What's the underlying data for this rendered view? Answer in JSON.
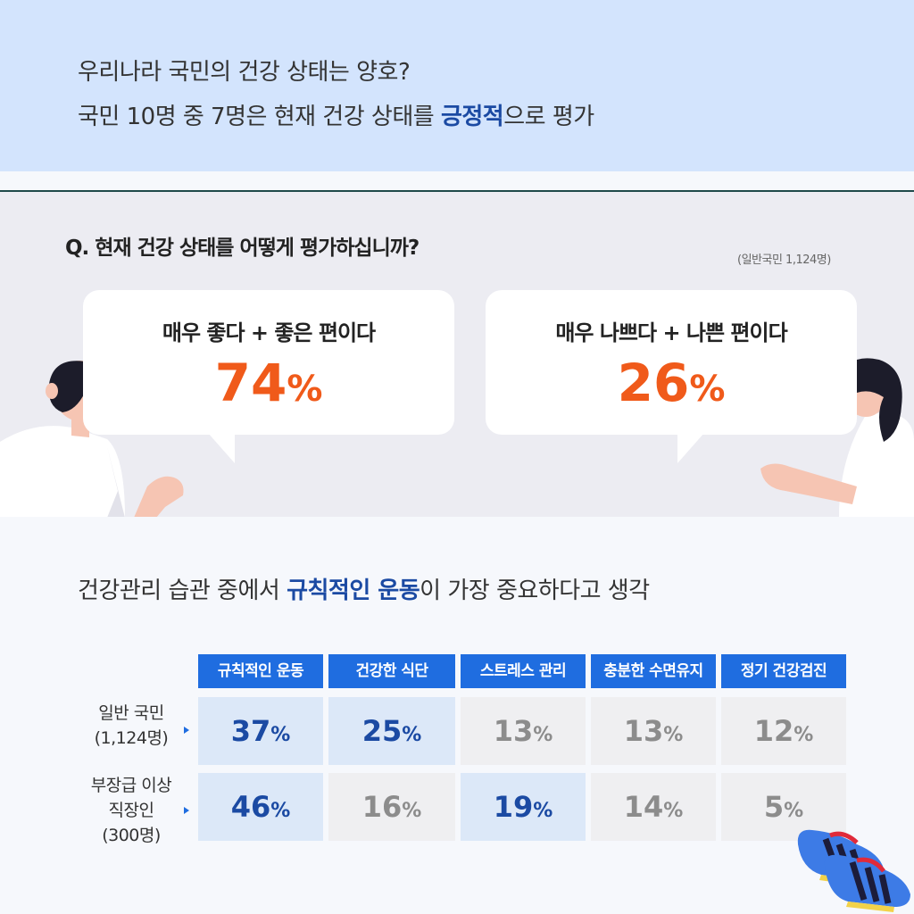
{
  "header": {
    "line1": "우리나라 국민의 건강 상태는 양호?",
    "line2_prefix": "국민 10명 중 7명은 현재 건강 상태를 ",
    "line2_highlight": "긍정적",
    "line2_suffix": "으로 평가"
  },
  "survey": {
    "question": "Q. 현재 건강 상태를 어떻게 평가하십니까?",
    "sample": "(일반국민 1,124명)",
    "positive": {
      "label": "매우 좋다 + 좋은 편이다",
      "value": "74",
      "unit": "%"
    },
    "negative": {
      "label": "매우 나쁘다 + 나쁜 편이다",
      "value": "26",
      "unit": "%"
    }
  },
  "habits": {
    "title_prefix": "건강관리 습관 중에서 ",
    "title_highlight": "규칙적인 운동",
    "title_suffix": "이 가장 중요하다고 생각",
    "columns": [
      "규칙적인 운동",
      "건강한 식단",
      "스트레스 관리",
      "충분한 수면유지",
      "정기 건강검진"
    ],
    "rows": [
      {
        "label_line1": "일반 국민",
        "label_line2": "(1,124명)",
        "label_line3": "",
        "values": [
          "37",
          "25",
          "13",
          "13",
          "12"
        ],
        "highlight": [
          true,
          true,
          false,
          false,
          false
        ]
      },
      {
        "label_line1": "부장급 이상",
        "label_line2": "직장인",
        "label_line3": "(300명)",
        "values": [
          "46",
          "16",
          "19",
          "14",
          "5"
        ],
        "highlight": [
          true,
          false,
          true,
          false,
          false
        ]
      }
    ],
    "unit": "%"
  },
  "colors": {
    "accent_blue": "#1f6de0",
    "highlight_text": "#1b4aa3",
    "orange": "#f05a1a"
  }
}
